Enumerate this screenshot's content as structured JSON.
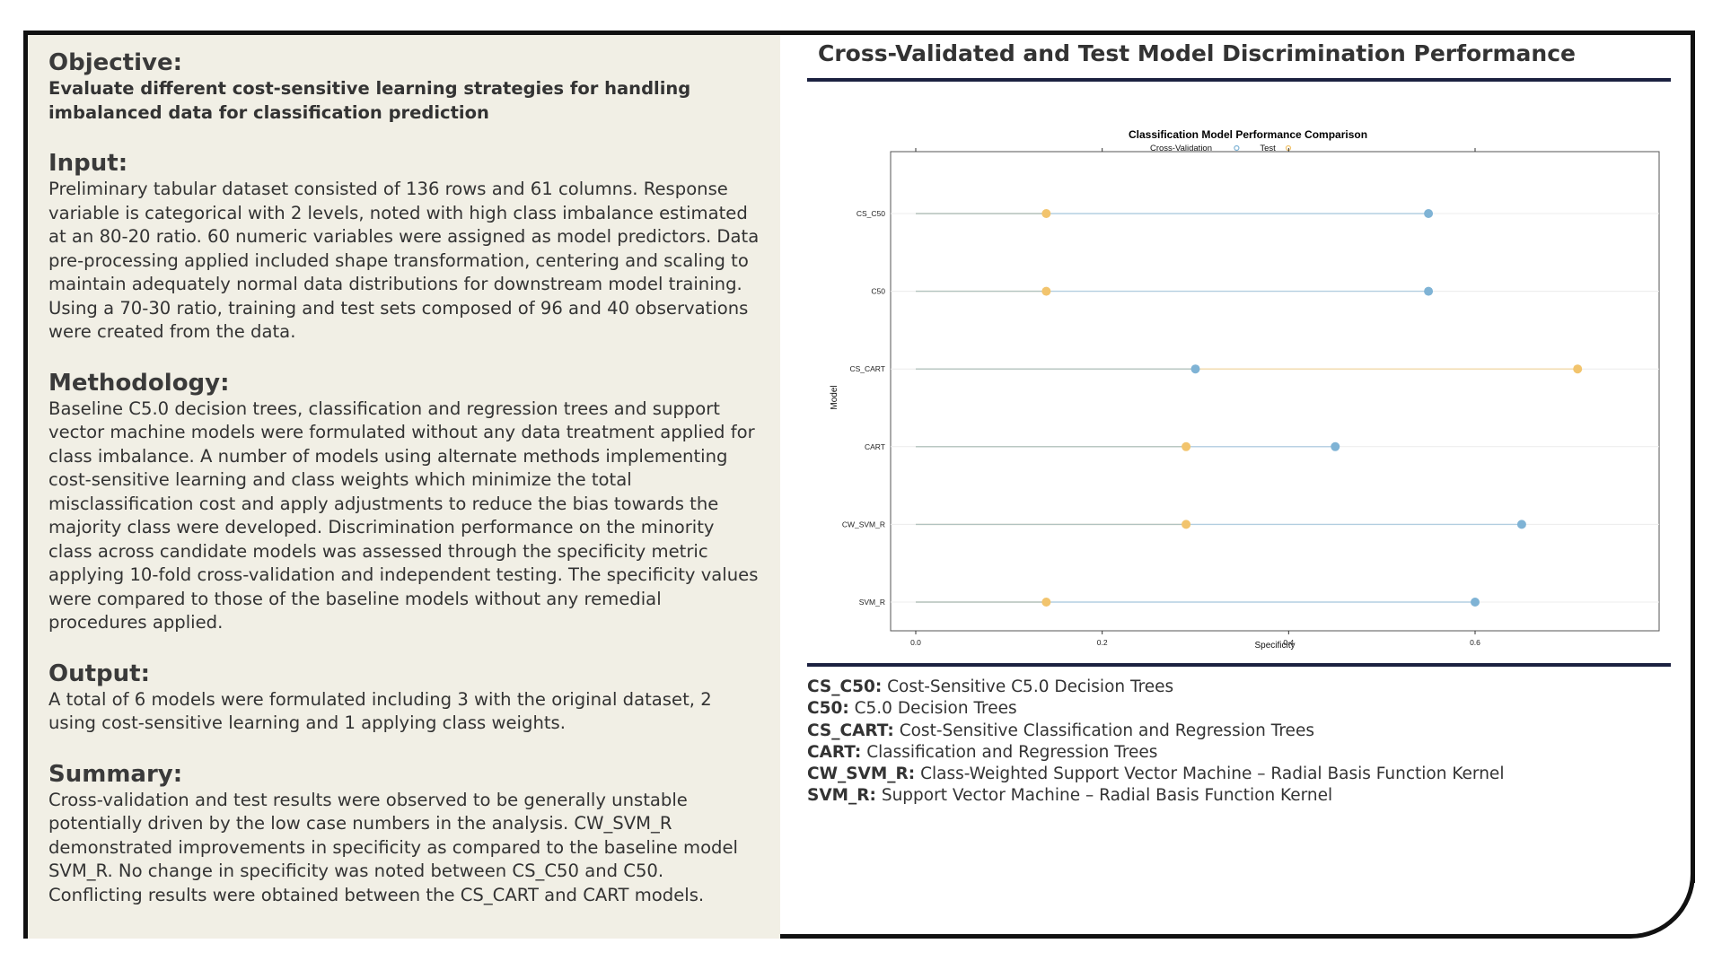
{
  "left": {
    "objective": {
      "heading": "Objective:",
      "text": "Evaluate different cost-sensitive learning strategies for handling imbalanced data for classification prediction"
    },
    "input": {
      "heading": "Input:",
      "text": "Preliminary tabular dataset consisted of 136 rows and 61 columns. Response variable is categorical with 2 levels, noted with high class imbalance estimated at an 80-20 ratio. 60 numeric variables were assigned as model predictors. Data pre-processing applied included shape transformation, centering and scaling to maintain adequately normal data distributions for downstream model training. Using a 70-30 ratio, training and test sets composed of 96 and 40 observations were created from the data."
    },
    "methodology": {
      "heading": "Methodology:",
      "text": "Baseline C5.0 decision trees, classification and regression trees and support vector machine models were formulated without any data treatment applied for class imbalance. A number of models using alternate methods implementing cost-sensitive learning and class weights which minimize the total misclassification cost and apply adjustments to reduce the bias towards the majority class were developed. Discrimination performance on the minority class across candidate models was assessed through the specificity metric applying 10-fold cross-validation and independent testing. The specificity values were compared to those of the baseline models without any remedial procedures applied."
    },
    "output": {
      "heading": "Output:",
      "text": "A total of 6 models were formulated including 3 with the original dataset, 2 using cost-sensitive learning and 1 applying class weights."
    },
    "summary": {
      "heading": "Summary:",
      "text": "Cross-validation and test results were observed to be generally unstable potentially driven by the low case numbers in the analysis. CW_SVM_R demonstrated improvements in specificity as compared to the baseline model SVM_R. No change in specificity was noted between CS_C50 and C50. Conflicting results were obtained between the CS_CART and CART models."
    }
  },
  "right": {
    "title": "Cross-Validated and Test Model Discrimination Performance",
    "legend_items": [
      {
        "abbr": "CS_C50:",
        "desc": "Cost-Sensitive C5.0 Decision Trees"
      },
      {
        "abbr": "C50:",
        "desc": "C5.0 Decision Trees"
      },
      {
        "abbr": "CS_CART:",
        "desc": "Cost-Sensitive Classification and Regression Trees"
      },
      {
        "abbr": "CART:",
        "desc": "Classification and Regression Trees"
      },
      {
        "abbr": "CW_SVM_R:",
        "desc": "Class-Weighted Support Vector Machine – Radial Basis Function Kernel"
      },
      {
        "abbr": "SVM_R:",
        "desc": "Support Vector Machine – Radial Basis Function Kernel"
      }
    ]
  },
  "chart_data": {
    "type": "scatter",
    "title": "Classification Model Performance Comparison",
    "xlabel": "Specificity",
    "ylabel": "Model",
    "xlim": [
      -0.1,
      0.76
    ],
    "xticks": [
      "0.0",
      "0.2",
      "0.4",
      "0.6"
    ],
    "xtick_values": [
      0,
      0.2,
      0.4,
      0.6
    ],
    "categories": [
      "CS_C50",
      "C50",
      "CS_CART",
      "CART",
      "CW_SVM_R",
      "SVM_R"
    ],
    "series": [
      {
        "name": "Cross-Validation",
        "color": "#7fb3d5",
        "values": [
          0.55,
          0.55,
          0.3,
          0.45,
          0.65,
          0.6
        ]
      },
      {
        "name": "Test",
        "color": "#f2c46d",
        "values": [
          0.14,
          0.14,
          0.71,
          0.29,
          0.29,
          0.14
        ]
      }
    ],
    "legend_position": "top",
    "grid": true
  }
}
